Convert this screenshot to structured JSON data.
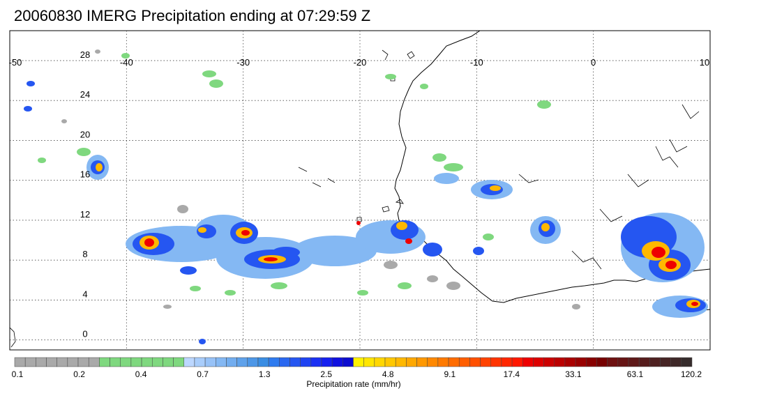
{
  "title": "20060830 IMERG Precipitation ending at 07:29:59 Z",
  "map": {
    "lon_range": [
      -50,
      10
    ],
    "lat_range": [
      -1,
      31
    ],
    "lon_ticks": [
      "-50",
      "-40",
      "-30",
      "-20",
      "-10",
      "0",
      "10"
    ],
    "lat_ticks": [
      "28",
      "24",
      "20",
      "16",
      "12",
      "8",
      "4",
      "0"
    ],
    "grid": "dotted"
  },
  "colorbar": {
    "label": "Precipitation rate (mm/hr)",
    "tick_labels": [
      "0.1",
      "0.2",
      "0.4",
      "0.7",
      "1.3",
      "2.5",
      "4.8",
      "9.1",
      "17.4",
      "33.1",
      "63.1",
      "120.2"
    ],
    "colors": [
      "#a9a9a9",
      "#a9a9a9",
      "#a9a9a9",
      "#a9a9a9",
      "#a9a9a9",
      "#a9a9a9",
      "#a9a9a9",
      "#a9a9a9",
      "#7fd87f",
      "#7fd87f",
      "#7fd87f",
      "#7fd87f",
      "#7fd87f",
      "#7fd87f",
      "#7fd87f",
      "#7fd87f",
      "#bcd7ff",
      "#a9cdfb",
      "#97c2f7",
      "#84b8f3",
      "#72adef",
      "#5fa2eb",
      "#4d97e7",
      "#3a8de3",
      "#2f7bef",
      "#2a68f0",
      "#2556f1",
      "#1f43f2",
      "#1a30f3",
      "#1520f0",
      "#1010e0",
      "#0c0cd0",
      "#fff200",
      "#ffe600",
      "#ffd700",
      "#ffc800",
      "#ffb800",
      "#ffa800",
      "#ff9800",
      "#ff8800",
      "#ff7a00",
      "#ff6c00",
      "#ff5e00",
      "#ff5000",
      "#ff4200",
      "#ff3400",
      "#ff2600",
      "#ff1800",
      "#ee0000",
      "#dd0000",
      "#cc0000",
      "#bb0000",
      "#aa0000",
      "#990000",
      "#880000",
      "#770000",
      "#6e1010",
      "#661414",
      "#5e1818",
      "#561c1c",
      "#4e2020",
      "#462424",
      "#3e2828",
      "#362c2c"
    ]
  }
}
